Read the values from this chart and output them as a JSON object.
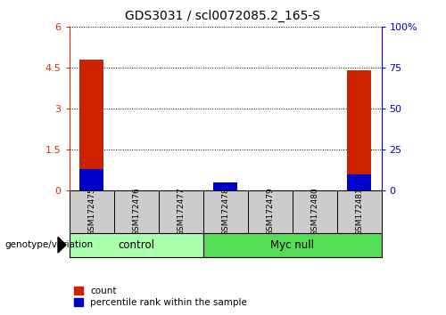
{
  "title": "GDS3031 / scl0072085.2_165-S",
  "samples": [
    "GSM172475",
    "GSM172476",
    "GSM172477",
    "GSM172478",
    "GSM172479",
    "GSM172480",
    "GSM172481"
  ],
  "count_values": [
    4.8,
    0.0,
    0.0,
    0.2,
    0.0,
    0.0,
    4.4
  ],
  "percentile_values": [
    13.0,
    0.0,
    0.0,
    5.0,
    0.0,
    0.0,
    10.0
  ],
  "left_yticks": [
    0,
    1.5,
    3.0,
    4.5,
    6
  ],
  "left_yticklabels": [
    "0",
    "1.5",
    "3",
    "4.5",
    "6"
  ],
  "right_yticks": [
    0,
    25,
    50,
    75,
    100
  ],
  "right_yticklabels": [
    "0",
    "25",
    "50",
    "75",
    "100%"
  ],
  "left_ylim": [
    0,
    6
  ],
  "right_ylim": [
    0,
    100
  ],
  "left_color": "#cc3300",
  "right_color": "#0000cc",
  "bar_color_red": "#cc2200",
  "bar_color_blue": "#0000cc",
  "group1_label": "control",
  "group2_label": "Myc null",
  "group1_indices": [
    0,
    1,
    2
  ],
  "group2_indices": [
    3,
    4,
    5,
    6
  ],
  "group_box_color_light": "#aaffaa",
  "group_box_color_mid": "#55dd55",
  "tick_bg_color": "#cccccc",
  "legend_count_label": "count",
  "legend_pct_label": "percentile rank within the sample",
  "genotype_label": "genotype/variation"
}
